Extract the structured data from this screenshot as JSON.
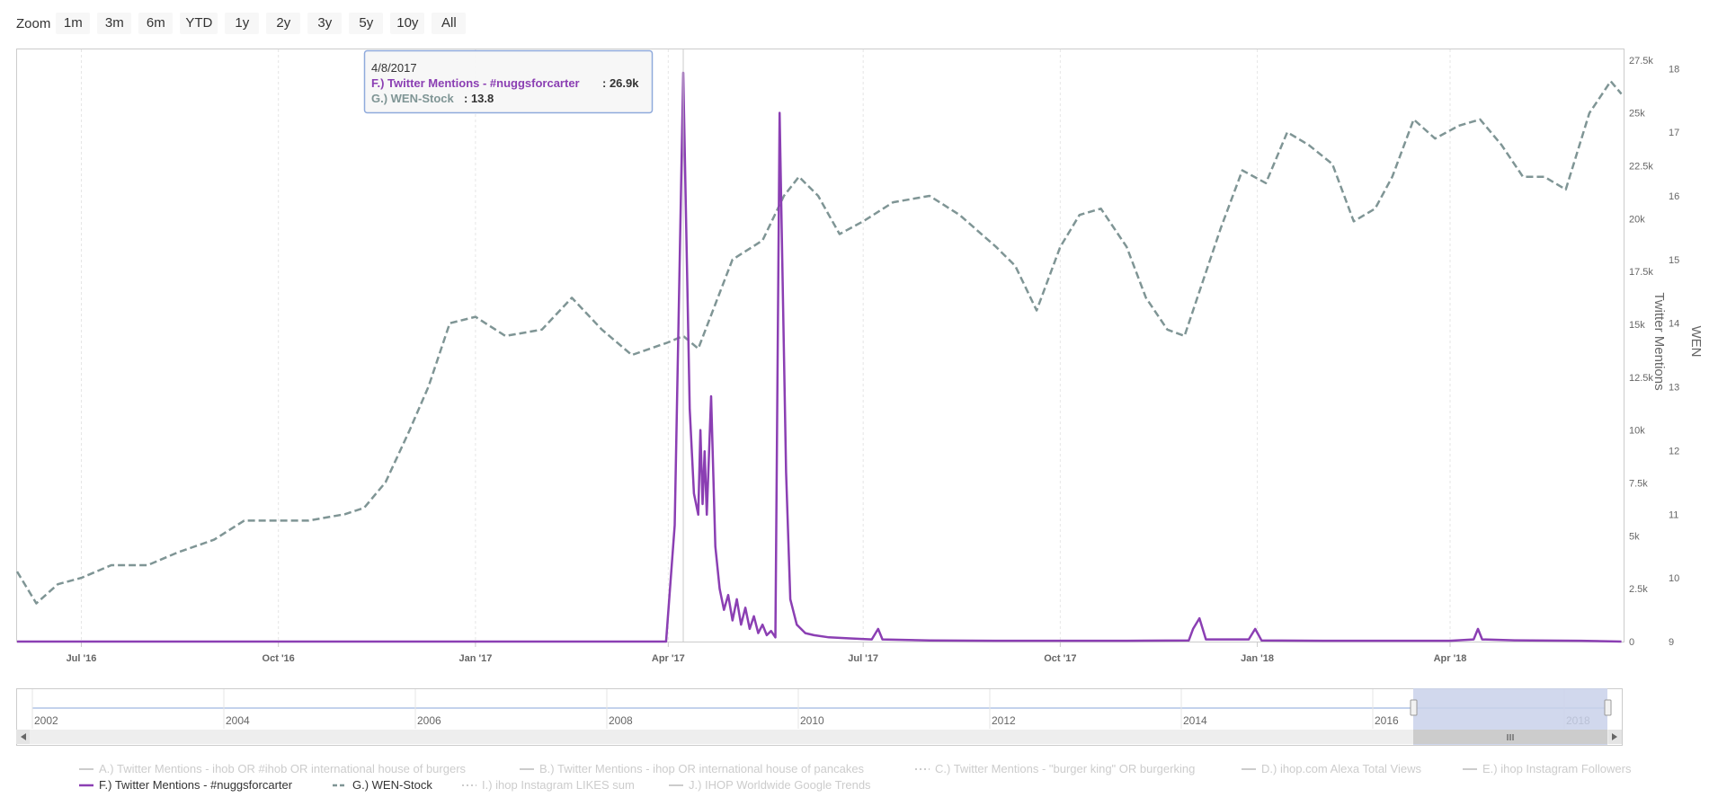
{
  "range_selector": {
    "zoom_label": "Zoom",
    "buttons": [
      "1m",
      "3m",
      "6m",
      "YTD",
      "1y",
      "2y",
      "3y",
      "5y",
      "10y",
      "All"
    ]
  },
  "tooltip": {
    "date": "4/8/2017",
    "series_f_label": "F.) Twitter Mentions - #nuggsforcarter",
    "series_f_value": ": 26.9k",
    "series_g_label": "G.) WEN-Stock",
    "series_g_value": ": 13.8"
  },
  "colors": {
    "twitter_series": "#8b3fb3",
    "stock_series": "#7f9595",
    "navigator_mask": "#c9d1ea",
    "legend_inactive": "#cccccc"
  },
  "chart_data": {
    "type": "line",
    "x_tick_labels": [
      "Jul '16",
      "Oct '16",
      "Jan '17",
      "Apr '17",
      "Jul '17",
      "Oct '17",
      "Jan '18",
      "Apr '18"
    ],
    "x_range": [
      "2016-06-01",
      "2018-06-21"
    ],
    "y_axis_twitter": {
      "title": "Twitter Mentions",
      "ticks": [
        "0",
        "2.5k",
        "5k",
        "7.5k",
        "10k",
        "12.5k",
        "15k",
        "17.5k",
        "20k",
        "22.5k",
        "25k",
        "27.5k"
      ],
      "range": [
        0,
        28000
      ]
    },
    "y_axis_stock": {
      "title": "WEN",
      "ticks": [
        "9",
        "10",
        "11",
        "12",
        "13",
        "14",
        "15",
        "16",
        "17",
        "18"
      ],
      "range": [
        9,
        18.3
      ]
    },
    "series": [
      {
        "name": "F.) Twitter Mentions - #nuggsforcarter",
        "axis": "twitter",
        "style": "solid",
        "points": [
          [
            "2016-06-01",
            0
          ],
          [
            "2017-03-31",
            0
          ],
          [
            "2017-04-04",
            5500
          ],
          [
            "2017-04-08",
            26900
          ],
          [
            "2017-04-11",
            11000
          ],
          [
            "2017-04-13",
            7000
          ],
          [
            "2017-04-15",
            6000
          ],
          [
            "2017-04-16",
            10000
          ],
          [
            "2017-04-17",
            6500
          ],
          [
            "2017-04-18",
            9000
          ],
          [
            "2017-04-19",
            6000
          ],
          [
            "2017-04-21",
            11600
          ],
          [
            "2017-04-23",
            4500
          ],
          [
            "2017-04-25",
            2500
          ],
          [
            "2017-04-27",
            1500
          ],
          [
            "2017-04-29",
            2200
          ],
          [
            "2017-05-01",
            1000
          ],
          [
            "2017-05-03",
            2000
          ],
          [
            "2017-05-05",
            800
          ],
          [
            "2017-05-07",
            1600
          ],
          [
            "2017-05-09",
            600
          ],
          [
            "2017-05-11",
            1200
          ],
          [
            "2017-05-13",
            400
          ],
          [
            "2017-05-15",
            800
          ],
          [
            "2017-05-17",
            300
          ],
          [
            "2017-05-19",
            500
          ],
          [
            "2017-05-21",
            200
          ],
          [
            "2017-05-23",
            25000
          ],
          [
            "2017-05-26",
            8000
          ],
          [
            "2017-05-28",
            2000
          ],
          [
            "2017-05-31",
            800
          ],
          [
            "2017-06-04",
            400
          ],
          [
            "2017-06-08",
            300
          ],
          [
            "2017-06-15",
            200
          ],
          [
            "2017-06-25",
            150
          ],
          [
            "2017-07-05",
            100
          ],
          [
            "2017-07-08",
            600
          ],
          [
            "2017-07-10",
            100
          ],
          [
            "2017-08-01",
            50
          ],
          [
            "2017-09-01",
            40
          ],
          [
            "2017-10-01",
            40
          ],
          [
            "2017-11-01",
            40
          ],
          [
            "2017-11-30",
            50
          ],
          [
            "2017-12-02",
            600
          ],
          [
            "2017-12-05",
            1100
          ],
          [
            "2017-12-08",
            100
          ],
          [
            "2017-12-28",
            100
          ],
          [
            "2017-12-31",
            600
          ],
          [
            "2018-01-03",
            50
          ],
          [
            "2018-02-01",
            40
          ],
          [
            "2018-03-01",
            40
          ],
          [
            "2018-04-01",
            40
          ],
          [
            "2018-04-12",
            100
          ],
          [
            "2018-04-14",
            600
          ],
          [
            "2018-04-16",
            100
          ],
          [
            "2018-05-01",
            60
          ],
          [
            "2018-06-01",
            40
          ],
          [
            "2018-06-20",
            0
          ]
        ]
      },
      {
        "name": "G.) WEN-Stock",
        "axis": "stock",
        "style": "dashed",
        "points": [
          [
            "2016-06-01",
            10.1
          ],
          [
            "2016-06-10",
            9.6
          ],
          [
            "2016-06-20",
            9.9
          ],
          [
            "2016-07-01",
            10.0
          ],
          [
            "2016-07-15",
            10.2
          ],
          [
            "2016-08-01",
            10.2
          ],
          [
            "2016-08-15",
            10.4
          ],
          [
            "2016-09-01",
            10.6
          ],
          [
            "2016-09-15",
            10.9
          ],
          [
            "2016-10-01",
            10.9
          ],
          [
            "2016-10-15",
            10.9
          ],
          [
            "2016-11-01",
            11.0
          ],
          [
            "2016-11-10",
            11.1
          ],
          [
            "2016-11-20",
            11.5
          ],
          [
            "2016-12-01",
            12.3
          ],
          [
            "2016-12-10",
            13.0
          ],
          [
            "2016-12-20",
            14.0
          ],
          [
            "2017-01-01",
            14.1
          ],
          [
            "2017-01-15",
            13.8
          ],
          [
            "2017-02-01",
            13.9
          ],
          [
            "2017-02-15",
            14.4
          ],
          [
            "2017-03-01",
            13.9
          ],
          [
            "2017-03-15",
            13.5
          ],
          [
            "2017-04-01",
            13.7
          ],
          [
            "2017-04-08",
            13.8
          ],
          [
            "2017-04-15",
            13.6
          ],
          [
            "2017-05-01",
            15.0
          ],
          [
            "2017-05-15",
            15.3
          ],
          [
            "2017-05-25",
            16.0
          ],
          [
            "2017-06-01",
            16.3
          ],
          [
            "2017-06-10",
            16.0
          ],
          [
            "2017-06-20",
            15.4
          ],
          [
            "2017-07-01",
            15.6
          ],
          [
            "2017-07-15",
            15.9
          ],
          [
            "2017-08-01",
            16.0
          ],
          [
            "2017-08-15",
            15.7
          ],
          [
            "2017-09-01",
            15.2
          ],
          [
            "2017-09-10",
            14.9
          ],
          [
            "2017-09-20",
            14.2
          ],
          [
            "2017-10-01",
            15.2
          ],
          [
            "2017-10-10",
            15.7
          ],
          [
            "2017-10-20",
            15.8
          ],
          [
            "2017-11-01",
            15.2
          ],
          [
            "2017-11-10",
            14.4
          ],
          [
            "2017-11-20",
            13.9
          ],
          [
            "2017-11-28",
            13.8
          ],
          [
            "2017-12-05",
            14.5
          ],
          [
            "2017-12-15",
            15.5
          ],
          [
            "2017-12-25",
            16.4
          ],
          [
            "2018-01-05",
            16.2
          ],
          [
            "2018-01-15",
            17.0
          ],
          [
            "2018-01-25",
            16.8
          ],
          [
            "2018-02-05",
            16.5
          ],
          [
            "2018-02-15",
            15.6
          ],
          [
            "2018-02-25",
            15.8
          ],
          [
            "2018-03-05",
            16.3
          ],
          [
            "2018-03-15",
            17.2
          ],
          [
            "2018-03-25",
            16.9
          ],
          [
            "2018-04-05",
            17.1
          ],
          [
            "2018-04-15",
            17.2
          ],
          [
            "2018-04-25",
            16.8
          ],
          [
            "2018-05-05",
            16.3
          ],
          [
            "2018-05-15",
            16.3
          ],
          [
            "2018-05-25",
            16.1
          ],
          [
            "2018-06-05",
            17.3
          ],
          [
            "2018-06-15",
            17.8
          ],
          [
            "2018-06-20",
            17.6
          ]
        ]
      }
    ],
    "navigator": {
      "x_labels": [
        "2002",
        "2004",
        "2006",
        "2008",
        "2010",
        "2012",
        "2014",
        "2016",
        "2018"
      ],
      "selected_range": [
        "2016-06-01",
        "2018-06-21"
      ]
    },
    "legend": {
      "placement": "bottom",
      "items": [
        {
          "label": "A.) Twitter Mentions - ihob OR #ihob OR international house of burgers",
          "active": false,
          "style": "solid"
        },
        {
          "label": "B.) Twitter Mentions - ihop OR international house of pancakes",
          "active": false,
          "style": "solid"
        },
        {
          "label": "C.) Twitter Mentions - \"burger king\" OR burgerking",
          "active": false,
          "style": "dotted"
        },
        {
          "label": "D.) ihop.com Alexa Total Views",
          "active": false,
          "style": "solid"
        },
        {
          "label": "E.) ihop Instagram Followers",
          "active": false,
          "style": "solid"
        },
        {
          "label": "F.) Twitter Mentions - #nuggsforcarter",
          "active": true,
          "style": "solid"
        },
        {
          "label": "G.) WEN-Stock",
          "active": true,
          "style": "dashed"
        },
        {
          "label": "I.) ihop Instagram LIKES sum",
          "active": false,
          "style": "dotted"
        },
        {
          "label": "J.) IHOP Worldwide Google Trends",
          "active": false,
          "style": "solid"
        }
      ]
    }
  }
}
